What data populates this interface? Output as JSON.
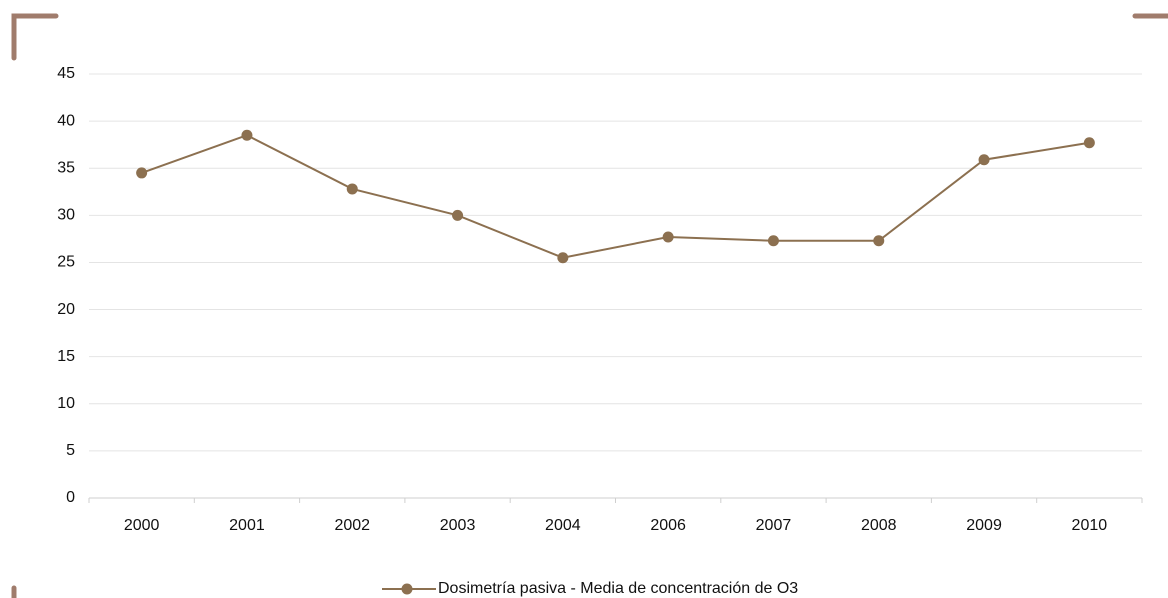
{
  "chart_data": {
    "type": "line",
    "categories": [
      "2000",
      "2001",
      "2002",
      "2003",
      "2004",
      "2006",
      "2007",
      "2008",
      "2009",
      "2010"
    ],
    "series": [
      {
        "name": "Dosimetría pasiva - Media de concentración de O3",
        "color": "#8c7050",
        "values": [
          34.5,
          38.5,
          32.8,
          30.0,
          25.5,
          27.7,
          27.3,
          27.3,
          35.9,
          37.7
        ]
      }
    ],
    "ylim": [
      0,
      45
    ],
    "yticks": [
      0,
      5,
      10,
      15,
      20,
      25,
      30,
      35,
      40,
      45
    ],
    "grid": true,
    "legend": "bottom"
  }
}
